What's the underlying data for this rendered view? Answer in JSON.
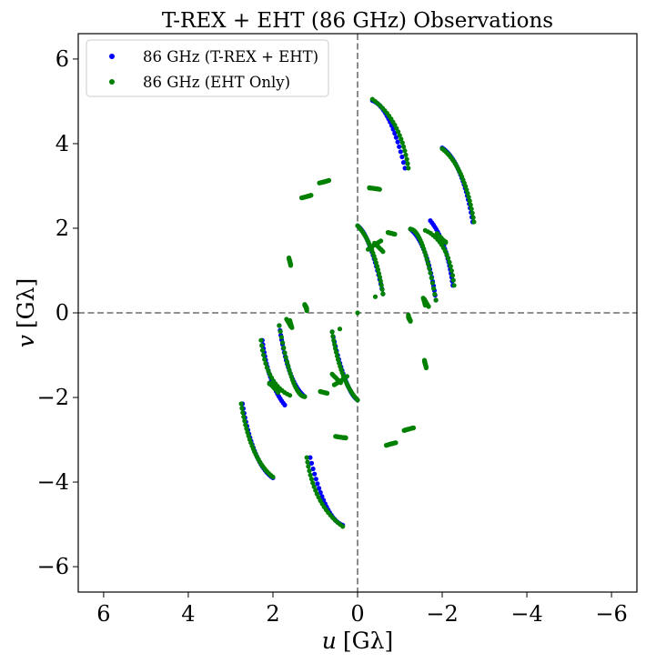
{
  "chart_data": {
    "type": "scatter",
    "title": "T-REX + EHT (86 GHz) Observations",
    "xlabel_var": "u",
    "xlabel_unit": "[Gλ]",
    "ylabel_var": "v",
    "ylabel_unit": "[Gλ]",
    "xlim": [
      6.6,
      -6.6
    ],
    "ylim": [
      -6.6,
      6.6
    ],
    "xticks": [
      6,
      4,
      2,
      0,
      -2,
      -4,
      -6
    ],
    "yticks": [
      6,
      4,
      2,
      0,
      -2,
      -4,
      -6
    ],
    "xtick_labels": [
      "6",
      "4",
      "2",
      "0",
      "−2",
      "−4",
      "−6"
    ],
    "ytick_labels": [
      "6",
      "4",
      "2",
      "0",
      "−2",
      "−4",
      "−6"
    ],
    "reference_lines": {
      "x": 0,
      "y": 0,
      "style": "dashed",
      "color": "#808080"
    },
    "legend_position": "top-left",
    "grid": false,
    "series": [
      {
        "name": "86 GHz (T-REX + EHT)",
        "color": "#0000ff",
        "arcs": [
          {
            "from": [
              -0.35,
              5.02
            ],
            "mid": [
              -0.75,
              4.55
            ],
            "to": [
              -1.12,
              3.42
            ],
            "n": 22
          },
          {
            "from": [
              -2.0,
              3.9
            ],
            "mid": [
              -2.42,
              3.3
            ],
            "to": [
              -2.72,
              2.15
            ],
            "n": 26
          },
          {
            "from": [
              0.0,
              2.06
            ],
            "mid": [
              -0.3,
              1.55
            ],
            "to": [
              -0.6,
              0.45
            ],
            "n": 24
          },
          {
            "from": [
              -1.25,
              1.98
            ],
            "mid": [
              -1.6,
              1.4
            ],
            "to": [
              -1.85,
              0.3
            ],
            "n": 24
          },
          {
            "from": [
              -1.72,
              2.18
            ],
            "mid": [
              -2.05,
              1.55
            ],
            "to": [
              -2.25,
              0.65
            ],
            "n": 22
          }
        ]
      },
      {
        "name": "86 GHz (EHT Only)",
        "color": "#008000",
        "arcs": [
          {
            "from": [
              2.75,
              -2.15
            ],
            "mid": [
              2.45,
              -3.25
            ],
            "to": [
              2.0,
              -3.88
            ],
            "n": 26
          },
          {
            "from": [
              1.2,
              -3.42
            ],
            "mid": [
              0.9,
              -4.4
            ],
            "to": [
              0.35,
              -5.05
            ],
            "n": 22
          },
          {
            "from": [
              2.28,
              -0.65
            ],
            "mid": [
              2.05,
              -1.5
            ],
            "to": [
              1.6,
              -1.95
            ],
            "n": 18
          },
          {
            "from": [
              1.85,
              -0.3
            ],
            "mid": [
              1.55,
              -1.55
            ],
            "to": [
              1.25,
              -1.98
            ],
            "n": 24
          },
          {
            "from": [
              0.6,
              -0.45
            ],
            "mid": [
              0.35,
              -1.45
            ],
            "to": [
              0.0,
              -2.06
            ],
            "n": 24
          },
          {
            "from": [
              2.08,
              -1.68
            ],
            "mid": [
              1.95,
              -1.78
            ],
            "to": [
              1.88,
              -1.88
            ],
            "n": 8
          },
          {
            "from": [
              0.6,
              -1.45
            ],
            "mid": [
              0.5,
              -1.55
            ],
            "to": [
              0.4,
              -1.65
            ],
            "n": 8
          },
          {
            "from": [
              -0.25,
              1.5
            ],
            "mid": [
              -0.42,
              1.62
            ],
            "to": [
              -0.55,
              1.7
            ],
            "n": 8
          },
          {
            "from": [
              -1.95,
              1.8
            ],
            "mid": [
              -2.02,
              1.72
            ],
            "to": [
              -2.08,
              1.66
            ],
            "n": 8
          },
          {
            "from": [
              1.32,
              2.72
            ],
            "mid": [
              1.2,
              2.75
            ],
            "to": [
              1.1,
              2.78
            ],
            "n": 8
          },
          {
            "from": [
              0.9,
              3.07
            ],
            "mid": [
              0.78,
              3.1
            ],
            "to": [
              0.68,
              3.13
            ],
            "n": 8
          },
          {
            "from": [
              -0.28,
              2.95
            ],
            "mid": [
              -0.4,
              2.94
            ],
            "to": [
              -0.52,
              2.92
            ],
            "n": 8
          },
          {
            "from": [
              -0.72,
              1.9
            ],
            "mid": [
              -0.8,
              1.88
            ],
            "to": [
              -0.88,
              1.86
            ],
            "n": 6
          },
          {
            "from": [
              1.62,
              1.28
            ],
            "mid": [
              1.6,
              1.2
            ],
            "to": [
              1.58,
              1.12
            ],
            "n": 6
          },
          {
            "from": [
              1.68,
              -0.15
            ],
            "mid": [
              1.62,
              -0.25
            ],
            "to": [
              1.58,
              -0.32
            ],
            "n": 6
          },
          {
            "from": [
              1.25,
              0.2
            ],
            "mid": [
              1.22,
              0.15
            ],
            "to": [
              1.2,
              0.1
            ],
            "n": 5
          },
          {
            "from": [
              -1.55,
              0.35
            ],
            "mid": [
              -1.58,
              0.25
            ],
            "to": [
              -1.6,
              0.18
            ],
            "n": 6
          },
          {
            "from": [
              -1.2,
              -0.05
            ],
            "mid": [
              -1.22,
              -0.12
            ],
            "to": [
              -1.25,
              -0.18
            ],
            "n": 5
          },
          {
            "from": [
              -1.58,
              -1.15
            ],
            "mid": [
              -1.6,
              -1.22
            ],
            "to": [
              -1.62,
              -1.3
            ],
            "n": 6
          },
          {
            "from": [
              0.88,
              -1.86
            ],
            "mid": [
              0.8,
              -1.88
            ],
            "to": [
              0.72,
              -1.9
            ],
            "n": 6
          },
          {
            "from": [
              0.52,
              -2.92
            ],
            "mid": [
              0.4,
              -2.94
            ],
            "to": [
              0.28,
              -2.96
            ],
            "n": 8
          },
          {
            "from": [
              -0.68,
              -3.13
            ],
            "mid": [
              -0.78,
              -3.1
            ],
            "to": [
              -0.9,
              -3.07
            ],
            "n": 8
          },
          {
            "from": [
              -1.1,
              -2.78
            ],
            "mid": [
              -1.2,
              -2.75
            ],
            "to": [
              -1.32,
              -2.72
            ],
            "n": 8
          }
        ],
        "points": [
          [
            -0.42,
            0.38
          ],
          [
            0.42,
            -0.38
          ],
          [
            0.0,
            0.0
          ]
        ]
      }
    ]
  }
}
